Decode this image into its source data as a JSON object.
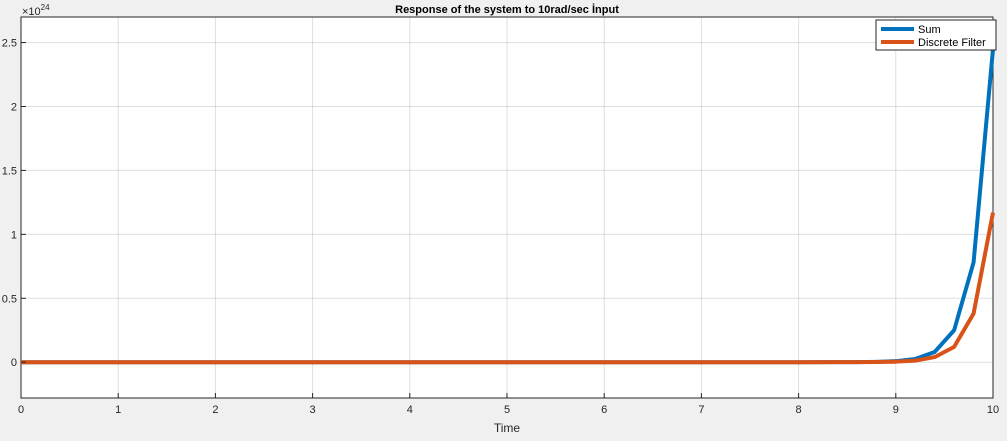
{
  "chart_data": {
    "type": "line",
    "title": "Response of the system to 10rad/sec İnput",
    "xlabel": "Time",
    "ylabel": "",
    "xlim": [
      0,
      10
    ],
    "ylim": [
      -0.28,
      2.7
    ],
    "y_exponent_label": "×10",
    "y_exponent_power": "24",
    "xticks": [
      0,
      1,
      2,
      3,
      4,
      5,
      6,
      7,
      8,
      9,
      10
    ],
    "xtick_labels": [
      "0",
      "1",
      "2",
      "3",
      "4",
      "5",
      "6",
      "7",
      "8",
      "9",
      "10"
    ],
    "yticks": [
      0,
      0.5,
      1,
      1.5,
      2,
      2.5
    ],
    "ytick_labels": [
      "0",
      "0.5",
      "1",
      "1.5",
      "2",
      "2.5"
    ],
    "grid": true,
    "legend_position": "top-right",
    "series": [
      {
        "name": "Sum",
        "color": "#0072BD",
        "x": [
          0,
          1,
          2,
          3,
          4,
          5,
          6,
          7,
          8,
          8.4,
          8.6,
          8.8,
          9.0,
          9.2,
          9.4,
          9.6,
          9.8,
          10.0
        ],
        "y": [
          0,
          0,
          0,
          0,
          0,
          0,
          0,
          0,
          0,
          0.0005,
          0.001,
          0.003,
          0.008,
          0.025,
          0.08,
          0.25,
          0.78,
          2.45
        ]
      },
      {
        "name": "Discrete Filter",
        "color": "#D95319",
        "x": [
          0,
          1,
          2,
          3,
          4,
          5,
          6,
          7,
          8,
          8.4,
          8.6,
          8.8,
          9.0,
          9.2,
          9.4,
          9.6,
          9.8,
          10.0
        ],
        "y": [
          0,
          0,
          0,
          0,
          0,
          0,
          0,
          0,
          0,
          0.0002,
          0.0005,
          0.0013,
          0.004,
          0.012,
          0.04,
          0.12,
          0.38,
          1.17
        ]
      }
    ]
  }
}
